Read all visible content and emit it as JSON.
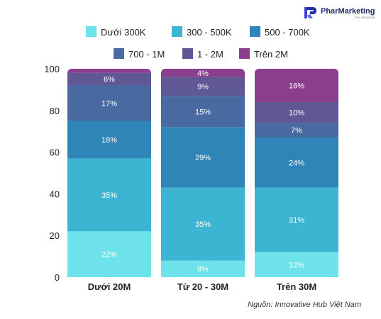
{
  "brand": {
    "name": "PharMarketing",
    "sub": "BY ADNOVA"
  },
  "source": "Nguồn: Innovative Hub Việt Nam",
  "chart_data": {
    "type": "bar",
    "stacked": true,
    "categories": [
      "Dưới 20M",
      "Từ 20 - 30M",
      "Trên 30M"
    ],
    "series": [
      {
        "name": "Dưới 300K",
        "color": "#6ee2ea",
        "values": [
          22,
          8,
          12
        ],
        "labels": [
          "22%",
          "8%",
          "12%"
        ]
      },
      {
        "name": "300 - 500K",
        "color": "#3cb5d2",
        "values": [
          35,
          35,
          31
        ],
        "labels": [
          "35%",
          "35%",
          "31%"
        ]
      },
      {
        "name": "500 - 700K",
        "color": "#2f85b8",
        "values": [
          18,
          29,
          24
        ],
        "labels": [
          "18%",
          "29%",
          "24%"
        ]
      },
      {
        "name": "700 - 1M",
        "color": "#486aa0",
        "values": [
          17,
          15,
          7
        ],
        "labels": [
          "17%",
          "15%",
          "7%"
        ]
      },
      {
        "name": "1 - 2M",
        "color": "#5f5894",
        "values": [
          6,
          9,
          10
        ],
        "labels": [
          "6%",
          "9%",
          "10%"
        ]
      },
      {
        "name": "Trên 2M",
        "color": "#8a3f8e",
        "values": [
          2,
          4,
          16
        ],
        "labels": [
          "",
          "4%",
          "16%"
        ]
      }
    ],
    "ylim": [
      0,
      100
    ],
    "yticks": [
      0,
      20,
      40,
      60,
      80,
      100
    ],
    "grid": false,
    "legend": "top"
  }
}
